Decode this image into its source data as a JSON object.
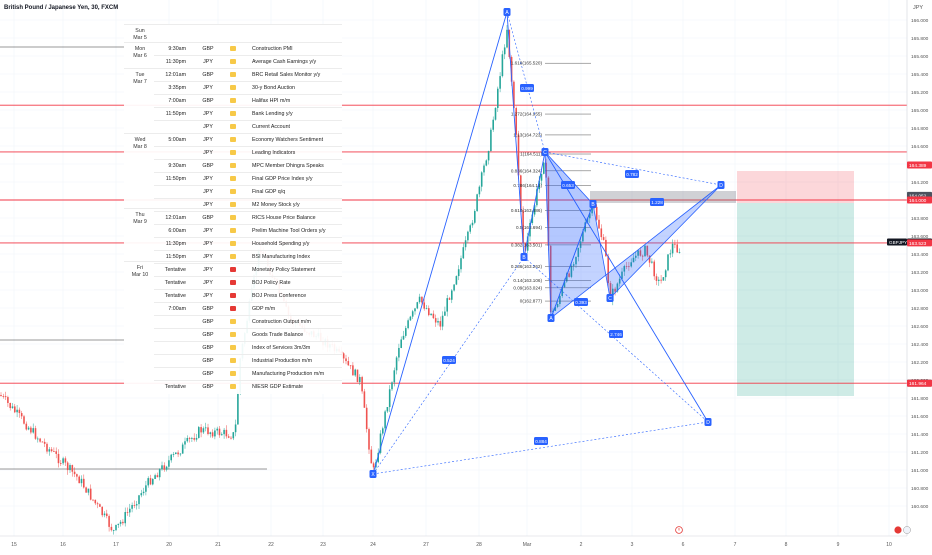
{
  "header": {
    "title": "British Pound / Japanese Yen, 30, FXCM"
  },
  "y_axis": {
    "currency": "JPY",
    "min": 159.92,
    "max": 166.2,
    "ticks": [
      "166.000",
      "165.800",
      "165.600",
      "165.400",
      "165.200",
      "165.000",
      "164.800",
      "164.600",
      "164.400",
      "164.200",
      "164.000",
      "163.800",
      "163.600",
      "163.400",
      "163.200",
      "163.000",
      "162.800",
      "162.600",
      "162.400",
      "162.200",
      "162.000",
      "161.800",
      "161.600",
      "161.400",
      "161.200",
      "161.000",
      "160.800",
      "160.600"
    ]
  },
  "x_axis": {
    "labels": [
      "15",
      "16",
      "17",
      "20",
      "21",
      "22",
      "23",
      "24",
      "27",
      "28",
      "Mar",
      "2",
      "3",
      "6",
      "7",
      "8",
      "9",
      "10"
    ]
  },
  "horizontal_levels": [
    {
      "value": 165.054,
      "label": "165.054"
    },
    {
      "value": 164.534,
      "label": "164.534"
    },
    {
      "value": 164.0,
      "label": "164.000"
    },
    {
      "value": 163.523,
      "label": "163.523"
    },
    {
      "value": 161.965,
      "label": "161.965"
    }
  ],
  "price_labels": [
    {
      "text": "164.389",
      "value": 164.389,
      "kind": "red"
    },
    {
      "text": "164.052",
      "value": 164.052,
      "kind": "gray"
    },
    {
      "text": "164.000",
      "value": 164.0,
      "kind": "red"
    },
    {
      "text": "163.534",
      "value": 163.534,
      "kind": "dark",
      "prefix": "GBPJPY"
    },
    {
      "text": "163.523",
      "value": 163.523,
      "kind": "red"
    },
    {
      "text": "161.965",
      "value": 161.965,
      "kind": "gray"
    },
    {
      "text": "161.964",
      "value": 161.964,
      "kind": "red"
    }
  ],
  "fib_levels": [
    {
      "label": "1.618(165.520)",
      "value": 165.52
    },
    {
      "label": "1.272(164.955)",
      "value": 164.955
    },
    {
      "label": "1.13(164.723)",
      "value": 164.723
    },
    {
      "label": "1(164.511)",
      "value": 164.511
    },
    {
      "label": "0.886(164.324)",
      "value": 164.324
    },
    {
      "label": "0.786(164.16)",
      "value": 164.16
    },
    {
      "label": "0.618(163.886)",
      "value": 163.886
    },
    {
      "label": "0.5(163.694)",
      "value": 163.694
    },
    {
      "label": "0.382(163.501)",
      "value": 163.501
    },
    {
      "label": "0.236(163.262)",
      "value": 163.262
    },
    {
      "label": "0.14(163.106)",
      "value": 163.106
    },
    {
      "label": "0.09(163.024)",
      "value": 163.024
    },
    {
      "label": "0(162.877)",
      "value": 162.877
    }
  ],
  "pattern_points": [
    "A",
    "X",
    "B",
    "C",
    "D",
    "A",
    "B",
    "C",
    "D",
    "B",
    "D"
  ],
  "pattern_ratios": [
    "0.999",
    "0.524",
    "0.884",
    "0.653",
    "0.782",
    "1.228",
    "0.393",
    "2.746"
  ],
  "calendar": {
    "days": [
      {
        "day": "Sun",
        "date": "Mar 5"
      },
      {
        "day": "Mon",
        "date": "Mar 6"
      },
      {
        "day": "Tue",
        "date": "Mar 7"
      },
      {
        "day": "Wed",
        "date": "Mar 8"
      },
      {
        "day": "Thu",
        "date": "Mar 9"
      },
      {
        "day": "Fri",
        "date": "Mar 10"
      }
    ],
    "events": [
      {
        "time": "9:30am",
        "currency": "GBP",
        "impact": "yellow",
        "event": "Construction PMI"
      },
      {
        "time": "11:30pm",
        "currency": "JPY",
        "impact": "yellow",
        "event": "Average Cash Earnings y/y"
      },
      {
        "time": "12:01am",
        "currency": "GBP",
        "impact": "yellow",
        "event": "BRC Retail Sales Monitor y/y"
      },
      {
        "time": "3:35pm",
        "currency": "JPY",
        "impact": "yellow",
        "event": "30-y Bond Auction"
      },
      {
        "time": "7:00am",
        "currency": "GBP",
        "impact": "yellow",
        "event": "Halifax HPI m/m"
      },
      {
        "time": "11:50pm",
        "currency": "JPY",
        "impact": "yellow",
        "event": "Bank Lending y/y"
      },
      {
        "time": "",
        "currency": "JPY",
        "impact": "yellow",
        "event": "Current Account"
      },
      {
        "time": "5:00am",
        "currency": "JPY",
        "impact": "yellow",
        "event": "Economy Watchers Sentiment"
      },
      {
        "time": "",
        "currency": "JPY",
        "impact": "yellow",
        "event": "Leading Indicators"
      },
      {
        "time": "9:30am",
        "currency": "GBP",
        "impact": "yellow",
        "event": "MPC Member Dhingra Speaks"
      },
      {
        "time": "11:50pm",
        "currency": "JPY",
        "impact": "yellow",
        "event": "Final GDP Price Index y/y"
      },
      {
        "time": "",
        "currency": "JPY",
        "impact": "yellow",
        "event": "Final GDP q/q"
      },
      {
        "time": "",
        "currency": "JPY",
        "impact": "yellow",
        "event": "M2 Money Stock y/y"
      },
      {
        "time": "12:01am",
        "currency": "GBP",
        "impact": "yellow",
        "event": "RICS House Price Balance"
      },
      {
        "time": "6:00am",
        "currency": "JPY",
        "impact": "yellow",
        "event": "Prelim Machine Tool Orders y/y"
      },
      {
        "time": "11:30pm",
        "currency": "JPY",
        "impact": "yellow",
        "event": "Household Spending y/y"
      },
      {
        "time": "11:50pm",
        "currency": "JPY",
        "impact": "yellow",
        "event": "BSI Manufacturing Index"
      },
      {
        "time": "Tentative",
        "currency": "JPY",
        "impact": "red",
        "event": "Monetary Policy Statement"
      },
      {
        "time": "Tentative",
        "currency": "JPY",
        "impact": "red",
        "event": "BOJ Policy Rate"
      },
      {
        "time": "Tentative",
        "currency": "JPY",
        "impact": "red",
        "event": "BOJ Press Conference"
      },
      {
        "time": "7:00am",
        "currency": "GBP",
        "impact": "red",
        "event": "GDP m/m"
      },
      {
        "time": "",
        "currency": "GBP",
        "impact": "yellow",
        "event": "Construction Output m/m"
      },
      {
        "time": "",
        "currency": "GBP",
        "impact": "yellow",
        "event": "Goods Trade Balance"
      },
      {
        "time": "",
        "currency": "GBP",
        "impact": "yellow",
        "event": "Index of Services 3m/3m"
      },
      {
        "time": "",
        "currency": "GBP",
        "impact": "yellow",
        "event": "Industrial Production m/m"
      },
      {
        "time": "",
        "currency": "GBP",
        "impact": "yellow",
        "event": "Manufacturing Production m/m"
      },
      {
        "time": "Tentative",
        "currency": "GBP",
        "impact": "yellow",
        "event": "NIESR GDP Estimate"
      }
    ]
  },
  "colors": {
    "up": "#26a69a",
    "down": "#ef5350",
    "level": "#f23645",
    "pattern": "#2962ff",
    "impact_yellow": "#f7c948",
    "impact_red": "#e53935"
  },
  "footer": {
    "tz_icon": "clock-icon",
    "logo": "tradingview-logo"
  }
}
